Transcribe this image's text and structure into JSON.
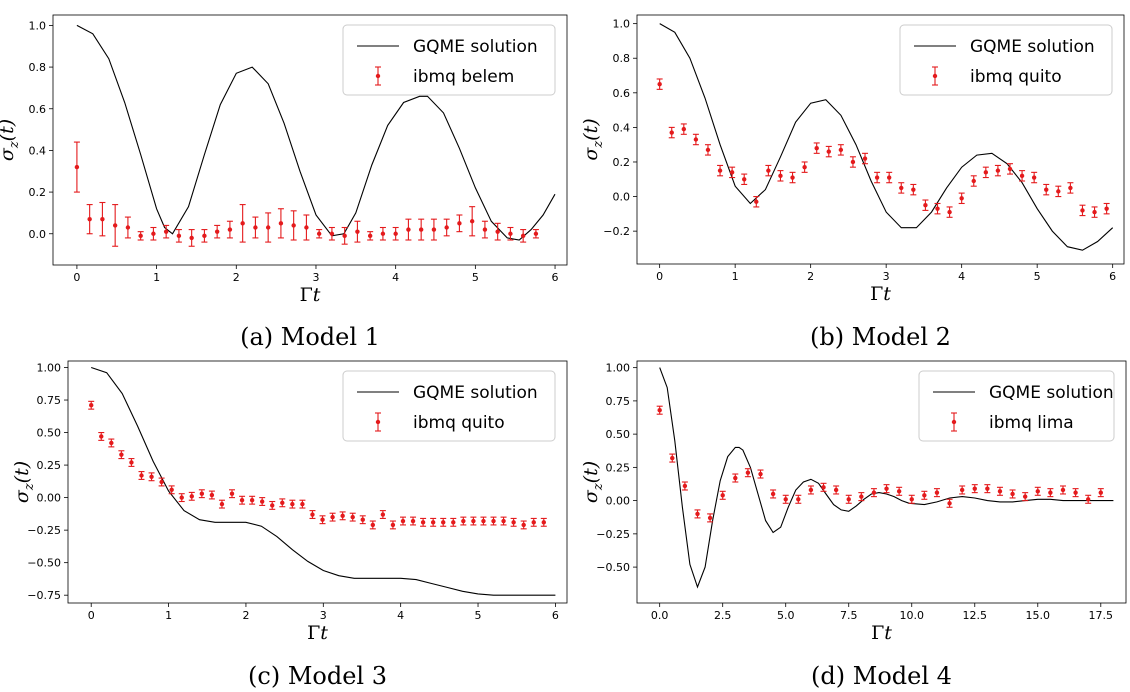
{
  "colors": {
    "curve": "#000000",
    "data": "#e41a1c"
  },
  "chart_data": [
    {
      "type": "line",
      "caption": "(a) Model 1",
      "xlabel": "Γt",
      "ylabel": "σz(t)",
      "xlim": [
        -0.3,
        6.15
      ],
      "ylim": [
        -0.15,
        1.05
      ],
      "xticks": [
        "0",
        "1",
        "2",
        "3",
        "4",
        "5",
        "6"
      ],
      "xtick_values": [
        0,
        1,
        2,
        3,
        4,
        5,
        6
      ],
      "yticks": [
        "0.0",
        "0.2",
        "0.4",
        "0.6",
        "0.8",
        "1.0"
      ],
      "ytick_values": [
        0,
        0.2,
        0.4,
        0.6,
        0.8,
        1.0
      ],
      "legend": {
        "position": "top-right",
        "line_label": "GQME solution",
        "points_label": "ibmq belem"
      },
      "series": [
        {
          "name": "GQME solution",
          "kind": "line",
          "x": [
            0,
            0.2,
            0.4,
            0.6,
            0.8,
            1.0,
            1.1,
            1.2,
            1.4,
            1.6,
            1.8,
            2.0,
            2.2,
            2.4,
            2.6,
            2.8,
            3.0,
            3.2,
            3.35,
            3.5,
            3.7,
            3.9,
            4.1,
            4.3,
            4.4,
            4.6,
            4.8,
            5.0,
            5.2,
            5.4,
            5.55,
            5.7,
            5.85,
            6.0
          ],
          "y": [
            1.0,
            0.96,
            0.84,
            0.63,
            0.38,
            0.12,
            0.03,
            0.0,
            0.13,
            0.38,
            0.62,
            0.77,
            0.8,
            0.72,
            0.53,
            0.3,
            0.09,
            -0.01,
            0.0,
            0.1,
            0.33,
            0.52,
            0.63,
            0.66,
            0.66,
            0.58,
            0.41,
            0.22,
            0.06,
            -0.02,
            -0.03,
            0.02,
            0.09,
            0.19
          ]
        },
        {
          "name": "ibmq belem",
          "kind": "errorbar",
          "x": [
            0,
            0.16,
            0.32,
            0.48,
            0.64,
            0.8,
            0.96,
            1.12,
            1.28,
            1.44,
            1.6,
            1.76,
            1.92,
            2.08,
            2.24,
            2.4,
            2.56,
            2.72,
            2.88,
            3.04,
            3.2,
            3.36,
            3.52,
            3.68,
            3.84,
            4.0,
            4.16,
            4.32,
            4.48,
            4.64,
            4.8,
            4.96,
            5.12,
            5.28,
            5.44,
            5.6,
            5.76
          ],
          "y": [
            0.32,
            0.07,
            0.07,
            0.04,
            0.03,
            -0.01,
            0.0,
            0.01,
            -0.01,
            -0.02,
            -0.01,
            0.01,
            0.02,
            0.05,
            0.03,
            0.03,
            0.05,
            0.04,
            0.03,
            0.0,
            0.0,
            -0.01,
            0.01,
            -0.01,
            0.0,
            0.0,
            0.02,
            0.02,
            0.02,
            0.03,
            0.05,
            0.06,
            0.02,
            0.01,
            0.0,
            -0.01,
            0.0
          ],
          "err": [
            0.12,
            0.07,
            0.08,
            0.1,
            0.05,
            0.02,
            0.03,
            0.03,
            0.03,
            0.04,
            0.03,
            0.03,
            0.04,
            0.09,
            0.05,
            0.07,
            0.07,
            0.07,
            0.06,
            0.02,
            0.03,
            0.04,
            0.05,
            0.02,
            0.03,
            0.03,
            0.05,
            0.05,
            0.05,
            0.04,
            0.04,
            0.07,
            0.04,
            0.04,
            0.03,
            0.03,
            0.02
          ]
        }
      ]
    },
    {
      "type": "line",
      "caption": "(b) Model 2",
      "xlabel": "Γt",
      "ylabel": "σz(t)",
      "xlim": [
        -0.3,
        6.15
      ],
      "ylim": [
        -0.39,
        1.05
      ],
      "xticks": [
        "0",
        "1",
        "2",
        "3",
        "4",
        "5",
        "6"
      ],
      "xtick_values": [
        0,
        1,
        2,
        3,
        4,
        5,
        6
      ],
      "yticks": [
        "−0.2",
        "0.0",
        "0.2",
        "0.4",
        "0.6",
        "0.8",
        "1.0"
      ],
      "ytick_values": [
        -0.2,
        0,
        0.2,
        0.4,
        0.6,
        0.8,
        1.0
      ],
      "legend": {
        "position": "top-right",
        "line_label": "GQME solution",
        "points_label": "ibmq quito"
      },
      "series": [
        {
          "name": "GQME solution",
          "kind": "line",
          "x": [
            0,
            0.2,
            0.4,
            0.6,
            0.8,
            1.0,
            1.2,
            1.4,
            1.6,
            1.8,
            2.0,
            2.2,
            2.4,
            2.6,
            2.8,
            3.0,
            3.2,
            3.4,
            3.6,
            3.8,
            4.0,
            4.2,
            4.4,
            4.6,
            4.8,
            5.0,
            5.2,
            5.4,
            5.6,
            5.8,
            6.0
          ],
          "y": [
            1.0,
            0.95,
            0.8,
            0.57,
            0.3,
            0.06,
            -0.04,
            0.04,
            0.23,
            0.43,
            0.54,
            0.56,
            0.47,
            0.3,
            0.09,
            -0.09,
            -0.18,
            -0.18,
            -0.09,
            0.05,
            0.17,
            0.24,
            0.25,
            0.19,
            0.08,
            -0.07,
            -0.2,
            -0.29,
            -0.31,
            -0.26,
            -0.18
          ]
        },
        {
          "name": "ibmq quito",
          "kind": "errorbar",
          "x": [
            0,
            0.16,
            0.32,
            0.48,
            0.64,
            0.8,
            0.96,
            1.12,
            1.28,
            1.44,
            1.6,
            1.76,
            1.92,
            2.08,
            2.24,
            2.4,
            2.56,
            2.72,
            2.88,
            3.04,
            3.2,
            3.36,
            3.52,
            3.68,
            3.84,
            4.0,
            4.16,
            4.32,
            4.48,
            4.64,
            4.8,
            4.96,
            5.12,
            5.28,
            5.44,
            5.6,
            5.76,
            5.92
          ],
          "y": [
            0.65,
            0.37,
            0.39,
            0.33,
            0.27,
            0.15,
            0.14,
            0.1,
            -0.03,
            0.15,
            0.12,
            0.11,
            0.17,
            0.28,
            0.26,
            0.27,
            0.2,
            0.22,
            0.11,
            0.11,
            0.05,
            0.04,
            -0.05,
            -0.07,
            -0.09,
            -0.01,
            0.09,
            0.14,
            0.15,
            0.16,
            0.12,
            0.11,
            0.04,
            0.03,
            0.05,
            -0.08,
            -0.09,
            -0.07
          ]
        }
      ]
    },
    {
      "type": "line",
      "caption": "(c) Model 3",
      "xlabel": "Γt",
      "ylabel": "σz(t)",
      "xlim": [
        -0.3,
        6.15
      ],
      "ylim": [
        -0.81,
        1.05
      ],
      "xticks": [
        "0",
        "1",
        "2",
        "3",
        "4",
        "5",
        "6"
      ],
      "xtick_values": [
        0,
        1,
        2,
        3,
        4,
        5,
        6
      ],
      "yticks": [
        "−0.75",
        "−0.50",
        "−0.25",
        "0.00",
        "0.25",
        "0.50",
        "0.75",
        "1.00"
      ],
      "ytick_values": [
        -0.75,
        -0.5,
        -0.25,
        0,
        0.25,
        0.5,
        0.75,
        1.0
      ],
      "legend": {
        "position": "top-right",
        "line_label": "GQME solution",
        "points_label": "ibmq quito"
      },
      "series": [
        {
          "name": "GQME solution",
          "kind": "line",
          "x": [
            0,
            0.2,
            0.4,
            0.6,
            0.8,
            1.0,
            1.2,
            1.4,
            1.6,
            1.8,
            2.0,
            2.2,
            2.4,
            2.6,
            2.8,
            3.0,
            3.2,
            3.4,
            3.6,
            3.8,
            4.0,
            4.2,
            4.4,
            4.6,
            4.8,
            5.0,
            5.2,
            5.4,
            5.6,
            5.8,
            6.0
          ],
          "y": [
            1.0,
            0.96,
            0.8,
            0.55,
            0.28,
            0.05,
            -0.1,
            -0.17,
            -0.19,
            -0.19,
            -0.19,
            -0.22,
            -0.3,
            -0.4,
            -0.49,
            -0.56,
            -0.6,
            -0.62,
            -0.62,
            -0.62,
            -0.62,
            -0.63,
            -0.66,
            -0.69,
            -0.72,
            -0.74,
            -0.75,
            -0.75,
            -0.75,
            -0.75,
            -0.75
          ]
        },
        {
          "name": "ibmq quito",
          "kind": "errorbar",
          "x": [
            0,
            0.13,
            0.26,
            0.39,
            0.52,
            0.65,
            0.78,
            0.91,
            1.04,
            1.17,
            1.3,
            1.43,
            1.56,
            1.69,
            1.82,
            1.95,
            2.08,
            2.21,
            2.34,
            2.47,
            2.6,
            2.73,
            2.86,
            2.99,
            3.12,
            3.25,
            3.38,
            3.51,
            3.64,
            3.77,
            3.9,
            4.03,
            4.16,
            4.29,
            4.42,
            4.55,
            4.68,
            4.81,
            4.94,
            5.07,
            5.2,
            5.33,
            5.46,
            5.59,
            5.72,
            5.85
          ],
          "y": [
            0.71,
            0.47,
            0.42,
            0.33,
            0.27,
            0.17,
            0.16,
            0.12,
            0.06,
            0.0,
            0.01,
            0.03,
            0.02,
            -0.05,
            0.03,
            -0.02,
            -0.02,
            -0.03,
            -0.06,
            -0.04,
            -0.05,
            -0.05,
            -0.13,
            -0.17,
            -0.15,
            -0.14,
            -0.15,
            -0.17,
            -0.21,
            -0.13,
            -0.21,
            -0.18,
            -0.18,
            -0.19,
            -0.19,
            -0.19,
            -0.19,
            -0.18,
            -0.18,
            -0.18,
            -0.18,
            -0.18,
            -0.19,
            -0.21,
            -0.19,
            -0.19
          ]
        }
      ]
    },
    {
      "type": "line",
      "caption": "(d) Model 4",
      "xlabel": "Γt",
      "ylabel": "σz(t)",
      "xlim": [
        -0.9,
        18.5
      ],
      "ylim": [
        -0.77,
        1.05
      ],
      "xticks": [
        "0.0",
        "2.5",
        "5.0",
        "7.5",
        "10.0",
        "12.5",
        "15.0",
        "17.5"
      ],
      "xtick_values": [
        0,
        2.5,
        5,
        7.5,
        10,
        12.5,
        15,
        17.5
      ],
      "yticks": [
        "−0.50",
        "−0.25",
        "0.00",
        "0.25",
        "0.50",
        "0.75",
        "1.00"
      ],
      "ytick_values": [
        -0.5,
        -0.25,
        0,
        0.25,
        0.5,
        0.75,
        1.0
      ],
      "legend": {
        "position": "top-right",
        "line_label": "GQME solution",
        "points_label": "ibmq lima"
      },
      "series": [
        {
          "name": "GQME solution",
          "kind": "line",
          "x": [
            0,
            0.3,
            0.6,
            0.9,
            1.2,
            1.5,
            1.8,
            2.1,
            2.4,
            2.7,
            3.0,
            3.15,
            3.3,
            3.6,
            3.9,
            4.2,
            4.5,
            4.8,
            5.1,
            5.4,
            5.7,
            6.0,
            6.3,
            6.6,
            6.9,
            7.2,
            7.5,
            7.8,
            8.1,
            8.4,
            8.7,
            9.0,
            9.3,
            9.6,
            9.9,
            10.5,
            11.0,
            11.5,
            12.0,
            12.5,
            13.0,
            13.5,
            14.0,
            14.5,
            15.0,
            15.5,
            16.0,
            16.5,
            17.0,
            17.5,
            18.0
          ],
          "y": [
            1.0,
            0.85,
            0.45,
            -0.05,
            -0.48,
            -0.65,
            -0.5,
            -0.15,
            0.15,
            0.33,
            0.4,
            0.4,
            0.38,
            0.25,
            0.05,
            -0.15,
            -0.24,
            -0.2,
            -0.05,
            0.08,
            0.14,
            0.16,
            0.13,
            0.05,
            -0.03,
            -0.07,
            -0.08,
            -0.04,
            0.01,
            0.05,
            0.06,
            0.05,
            0.03,
            0.0,
            -0.02,
            -0.03,
            -0.01,
            0.02,
            0.03,
            0.02,
            0.0,
            -0.01,
            -0.01,
            0.0,
            0.01,
            0.01,
            0.0,
            0.0,
            0.0,
            0.0,
            0.0
          ]
        },
        {
          "name": "ibmq lima",
          "kind": "errorbar",
          "x": [
            0,
            0.5,
            1.0,
            1.5,
            2.0,
            2.5,
            3.0,
            3.5,
            4.0,
            4.5,
            5.0,
            5.5,
            6.0,
            6.5,
            7.0,
            7.5,
            8.0,
            8.5,
            9.0,
            9.5,
            10.0,
            10.5,
            11.0,
            11.5,
            12.0,
            12.5,
            13.0,
            13.5,
            14.0,
            14.5,
            15.0,
            15.5,
            16.0,
            16.5,
            17.0,
            17.5
          ],
          "y": [
            0.68,
            0.32,
            0.11,
            -0.1,
            -0.13,
            0.04,
            0.17,
            0.21,
            0.2,
            0.05,
            0.01,
            0.01,
            0.08,
            0.1,
            0.08,
            0.01,
            0.03,
            0.06,
            0.09,
            0.07,
            0.01,
            0.04,
            0.06,
            -0.02,
            0.08,
            0.09,
            0.09,
            0.07,
            0.05,
            0.03,
            0.07,
            0.06,
            0.08,
            0.06,
            0.01,
            0.06
          ]
        }
      ]
    }
  ]
}
